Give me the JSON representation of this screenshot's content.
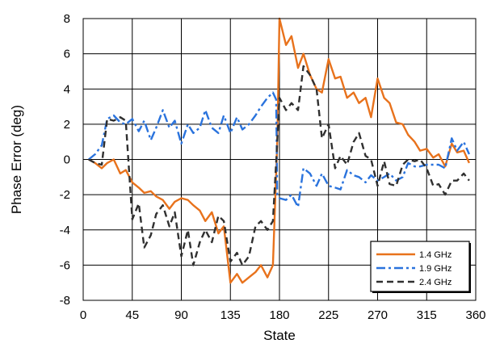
{
  "chart_data": {
    "type": "line",
    "xlabel": "State",
    "ylabel": "Phase Error (deg)",
    "xlim": [
      0,
      360
    ],
    "ylim": [
      -8,
      8
    ],
    "xticks": [
      0,
      45,
      90,
      135,
      180,
      225,
      270,
      315,
      360
    ],
    "yticks": [
      -8,
      -6,
      -4,
      -2,
      0,
      2,
      4,
      6,
      8
    ],
    "grid": true,
    "legend_position": "bottom-right",
    "series": [
      {
        "name": "1.4 GHz",
        "color": "#e8721c",
        "dash": "solid",
        "x": [
          5,
          11,
          17,
          22,
          28,
          34,
          39,
          45,
          51,
          56,
          62,
          67,
          73,
          79,
          84,
          90,
          96,
          101,
          107,
          112,
          118,
          124,
          129,
          135,
          141,
          146,
          152,
          158,
          163,
          169,
          174,
          178,
          180,
          186,
          191,
          197,
          202,
          208,
          214,
          219,
          225,
          231,
          236,
          242,
          248,
          253,
          259,
          264,
          270,
          276,
          281,
          287,
          293,
          298,
          304,
          309,
          315,
          321,
          326,
          332,
          338,
          343,
          349,
          354
        ],
        "y": [
          0,
          -0.2,
          -0.5,
          -0.2,
          0,
          -0.8,
          -0.6,
          -1.3,
          -1.6,
          -1.9,
          -1.8,
          -2.1,
          -2.3,
          -2.8,
          -2.4,
          -2.2,
          -2.3,
          -2.6,
          -2.9,
          -3.5,
          -3.0,
          -4.2,
          -3.8,
          -7.0,
          -6.5,
          -7.0,
          -6.7,
          -6.4,
          -6.0,
          -6.7,
          -6.0,
          1.0,
          8.0,
          6.5,
          7.0,
          5.2,
          6.0,
          4.8,
          4.0,
          3.8,
          5.7,
          4.6,
          4.7,
          3.5,
          3.8,
          3.2,
          3.5,
          2.4,
          4.6,
          3.5,
          3.2,
          2.1,
          2.0,
          1.4,
          1.0,
          0.5,
          0.6,
          0.1,
          0.3,
          -0.4,
          0.9,
          0.4,
          0.5,
          -0.2
        ]
      },
      {
        "name": "1.9 GHz",
        "color": "#2a73dd",
        "dash": "dashdot",
        "x": [
          5,
          11,
          17,
          22,
          28,
          34,
          39,
          45,
          51,
          56,
          62,
          67,
          73,
          79,
          84,
          90,
          96,
          101,
          107,
          112,
          118,
          124,
          129,
          135,
          141,
          146,
          152,
          158,
          163,
          169,
          174,
          177,
          178,
          180,
          186,
          191,
          197,
          202,
          208,
          214,
          219,
          225,
          231,
          236,
          242,
          248,
          253,
          259,
          264,
          270,
          276,
          281,
          287,
          293,
          298,
          304,
          309,
          315,
          321,
          326,
          332,
          338,
          343,
          349,
          354
        ],
        "y": [
          0,
          0.3,
          0.8,
          2.3,
          2.5,
          2.1,
          2.0,
          2.3,
          1.6,
          2.2,
          1.1,
          1.8,
          2.8,
          1.8,
          2.2,
          0.9,
          2.0,
          1.5,
          1.8,
          2.8,
          1.8,
          1.5,
          2.5,
          1.5,
          2.4,
          1.7,
          2.0,
          2.5,
          3.0,
          3.5,
          3.8,
          3.4,
          -2.0,
          -2.2,
          -2.3,
          -2.0,
          -2.7,
          -0.5,
          -0.8,
          -1.5,
          -0.8,
          -1.5,
          -1.6,
          -1.7,
          -0.6,
          -0.9,
          -1.0,
          -1.3,
          -0.9,
          -1.2,
          -1.0,
          -0.8,
          -1.2,
          -1.0,
          -0.2,
          -0.4,
          -0.4,
          -0.3,
          -0.3,
          -0.3,
          -0.5,
          1.2,
          0.5,
          1.0,
          0.3
        ]
      },
      {
        "name": "2.4 GHz",
        "color": "#303030",
        "dash": "dashed",
        "x": [
          5,
          11,
          17,
          22,
          28,
          34,
          39,
          45,
          51,
          56,
          62,
          67,
          73,
          79,
          84,
          90,
          96,
          101,
          107,
          112,
          118,
          124,
          129,
          135,
          141,
          146,
          152,
          158,
          163,
          169,
          174,
          178,
          180,
          186,
          191,
          197,
          202,
          208,
          214,
          219,
          225,
          231,
          236,
          242,
          248,
          253,
          259,
          264,
          270,
          276,
          281,
          287,
          293,
          298,
          304,
          309,
          315,
          321,
          326,
          332,
          338,
          343,
          349,
          354
        ],
        "y": [
          0,
          -0.2,
          -0.3,
          2.3,
          2.2,
          2.4,
          2.2,
          -3.4,
          -2.5,
          -5.0,
          -4.3,
          -3.1,
          -2.6,
          -3.8,
          -3.0,
          -5.5,
          -4.0,
          -6.0,
          -4.7,
          -4.0,
          -4.7,
          -3.2,
          -3.5,
          -5.8,
          -5.3,
          -6.0,
          -5.5,
          -3.8,
          -3.5,
          -4.0,
          -3.5,
          1.0,
          3.5,
          2.8,
          3.2,
          2.8,
          5.3,
          4.8,
          4.0,
          1.2,
          2.0,
          -0.5,
          0.2,
          -0.3,
          1.0,
          1.5,
          0.2,
          0.0,
          -1.5,
          -0.1,
          -1.4,
          -1.5,
          -0.3,
          0.0,
          -0.1,
          0.0,
          -0.5,
          -1.5,
          -1.4,
          -2.0,
          -1.2,
          -1.2,
          -0.8,
          -1.2
        ]
      }
    ]
  }
}
